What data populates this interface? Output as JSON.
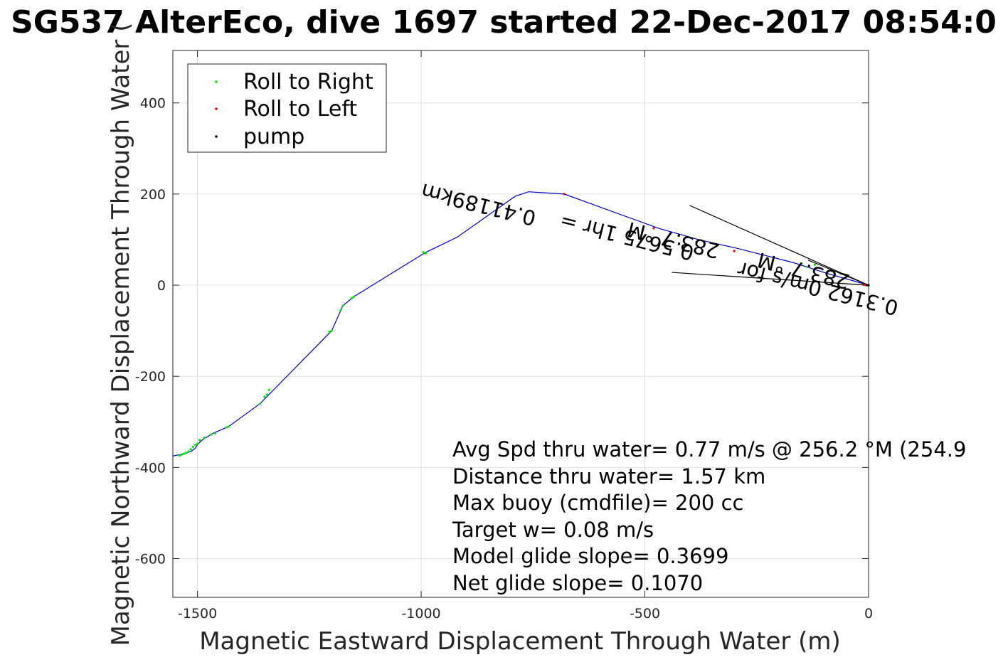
{
  "chart_data": {
    "type": "scatter",
    "title": "SG537 AlterEco, dive 1697 started 22-Dec-2017 08:54:0",
    "xlabel": "Magnetic Eastward Displacement Through Water (m)",
    "ylabel": "Magnetic Northward Displacement Through Water (",
    "xlim": [
      -1555,
      0
    ],
    "ylim": [
      -685,
      515
    ],
    "xticks": [
      -1500,
      -1000,
      -500,
      0
    ],
    "yticks": [
      -600,
      -400,
      -200,
      0,
      200,
      400
    ],
    "grid": true,
    "legend": {
      "placement": "top-left",
      "entries": [
        {
          "label": "Roll to Right",
          "color": "#00e600"
        },
        {
          "label": "Roll to Left",
          "color": "#e60000"
        },
        {
          "label": "pump",
          "color": "#000000"
        }
      ]
    },
    "track": {
      "color": "#0000cc",
      "x": [
        0,
        -90,
        -170,
        -290,
        -380,
        -470,
        -540,
        -610,
        -680,
        -760,
        -790,
        -920,
        -990,
        -1150,
        -1175,
        -1200,
        -1360,
        -1430,
        -1465,
        -1490,
        -1500,
        -1505,
        -1515,
        -1525,
        -1540,
        -1555
      ],
      "y": [
        0,
        25,
        50,
        80,
        100,
        125,
        150,
        175,
        200,
        205,
        195,
        105,
        72,
        -25,
        -45,
        -100,
        -260,
        -310,
        -325,
        -340,
        -350,
        -358,
        -365,
        -368,
        -372,
        -375
      ]
    },
    "series": [
      {
        "name": "Roll to Right",
        "color": "#00e600",
        "x": [
          -120,
          -135,
          -150,
          -990,
          -995,
          -1150,
          -1155,
          -1175,
          -1180,
          -1200,
          -1205,
          -1340,
          -1345,
          -1350,
          -1360,
          -1430,
          -1435,
          -1460,
          -1470,
          -1485,
          -1495,
          -1500,
          -1505,
          -1510,
          -1515,
          -1520,
          -1525,
          -1530,
          -1535,
          -1540
        ],
        "y": [
          45,
          40,
          48,
          70,
          72,
          -25,
          -28,
          -45,
          -55,
          -100,
          -102,
          -230,
          -240,
          -245,
          -260,
          -310,
          -312,
          -325,
          -328,
          -335,
          -340,
          -348,
          -350,
          -355,
          -360,
          -365,
          -368,
          -370,
          -372,
          -374
        ]
      },
      {
        "name": "Roll to Left",
        "color": "#e60000",
        "x": [
          -5,
          -10,
          -300,
          -480,
          -680
        ],
        "y": [
          0,
          1,
          75,
          125,
          200
        ]
      },
      {
        "name": "pump",
        "color": "#000000",
        "x": [
          0,
          -3
        ],
        "y": [
          0,
          0
        ]
      }
    ],
    "annotations": {
      "current_text_1": "0.41189km",
      "current_text_2": "0.5675 1hr =",
      "current_text_3": "283.7 °M",
      "current_text_4": "0.3162 0m/s for",
      "current_text_5": "283.7 °M",
      "stats": [
        "Avg Spd thru water=  0.77 m/s @ 256.2 °M (254.9",
        "Distance thru water=  1.57 km",
        "Max buoy (cmdfile)= 200 cc",
        "Target w= 0.08 m/s",
        "Model glide slope= 0.3699",
        "Net glide slope= 0.1070"
      ]
    },
    "current_arrow": {
      "x": [
        0,
        -135,
        -400
      ],
      "y": [
        0,
        55,
        175
      ],
      "head_x": [
        -440,
        -400,
        -135
      ],
      "head_y": [
        28,
        175,
        55
      ]
    }
  }
}
